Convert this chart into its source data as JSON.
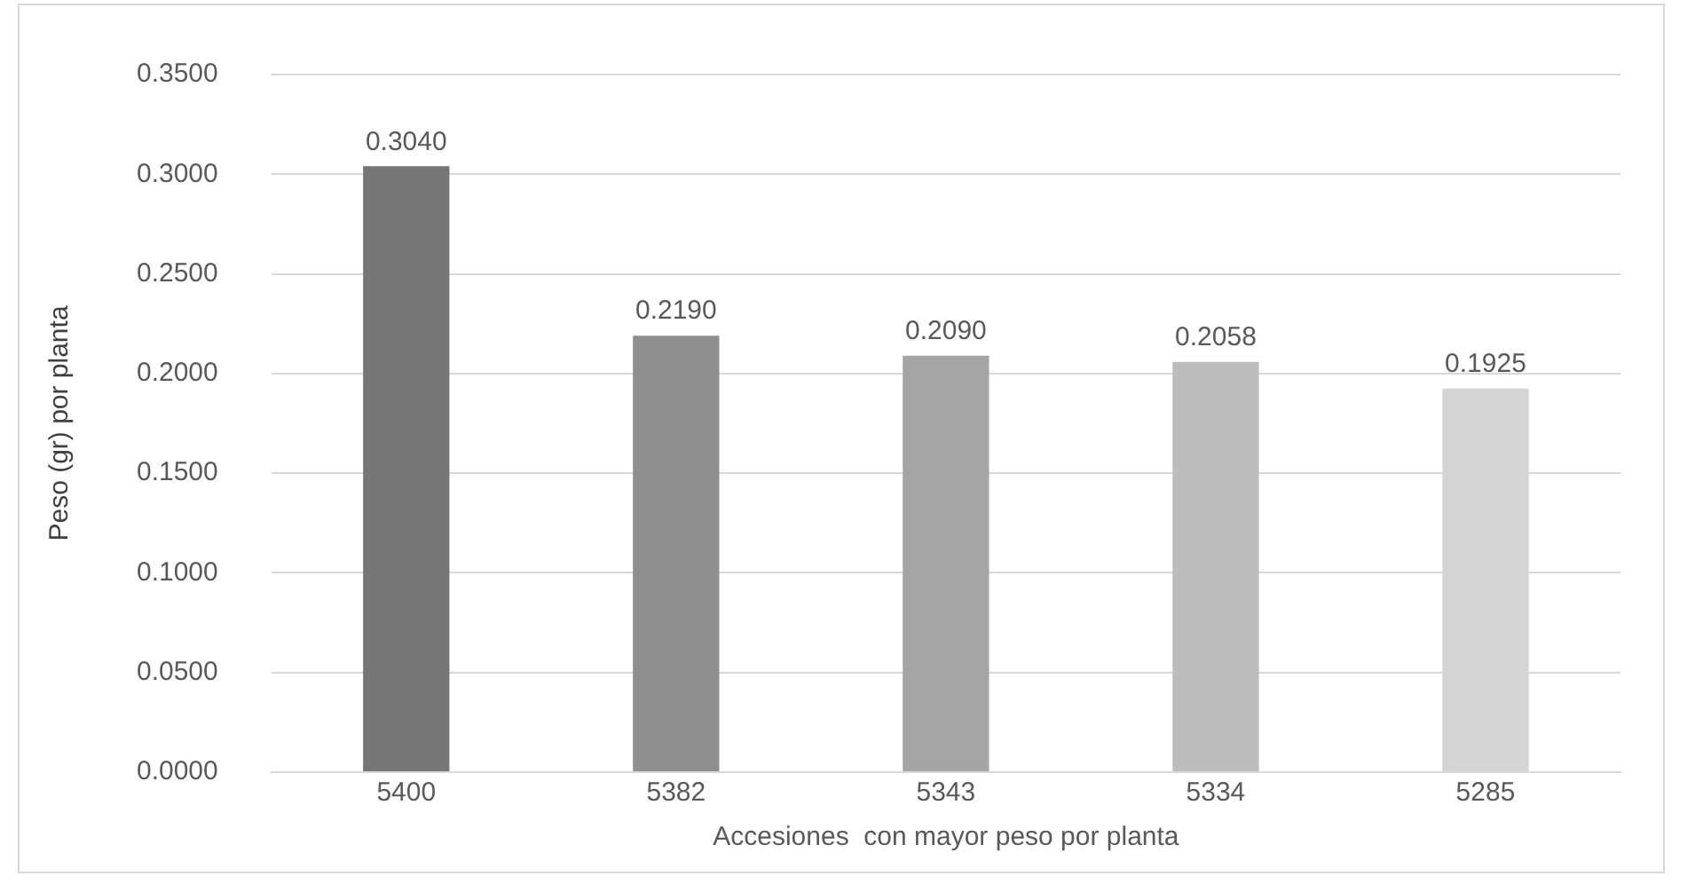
{
  "chart_data": {
    "type": "bar",
    "xlabel": "Accesiones  con mayor peso por planta",
    "ylabel": "Peso (gr) por planta",
    "categories": [
      "5400",
      "5382",
      "5343",
      "5334",
      "5285"
    ],
    "values": [
      0.304,
      0.219,
      0.209,
      0.2058,
      0.1925
    ],
    "colors": [
      "#767676",
      "#8f8f8f",
      "#a5a5a5",
      "#bcbcbc",
      "#d4d4d4"
    ],
    "value_labels": [
      "0.3040",
      "0.2190",
      "0.2090",
      "0.2058",
      "0.1925"
    ],
    "ylim": [
      0,
      0.35
    ],
    "yticks": [
      {
        "value": 0,
        "label": "0.0000"
      },
      {
        "value": 0.05,
        "label": "0.0500"
      },
      {
        "value": 0.1,
        "label": "0.1000"
      },
      {
        "value": 0.15,
        "label": "0.1500"
      },
      {
        "value": 0.2,
        "label": "0.2000"
      },
      {
        "value": 0.25,
        "label": "0.2500"
      },
      {
        "value": 0.3,
        "label": "0.3000"
      },
      {
        "value": 0.35,
        "label": "0.3500"
      }
    ],
    "grid": "y",
    "legend": false
  }
}
